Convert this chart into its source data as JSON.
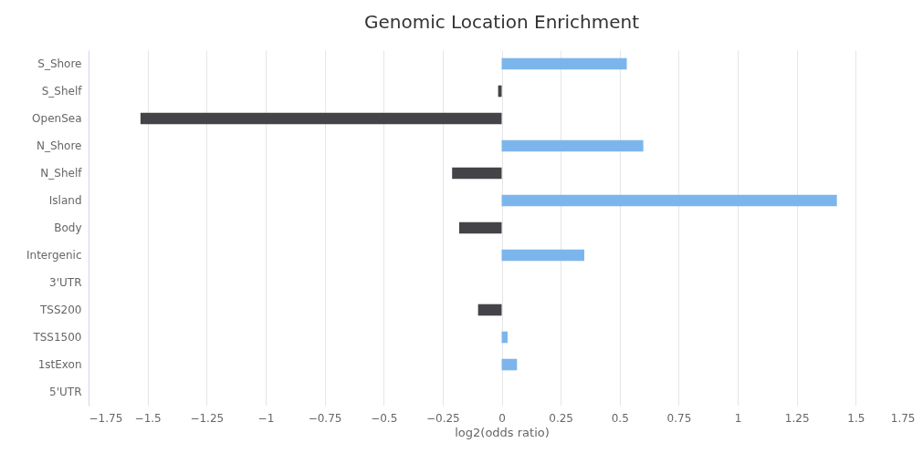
{
  "chart_data": {
    "type": "bar",
    "orientation": "horizontal",
    "title": "Genomic Location Enrichment",
    "xlabel": "log2(odds ratio)",
    "categories": [
      "S_Shore",
      "S_Shelf",
      "OpenSea",
      "N_Shore",
      "N_Shelf",
      "Island",
      "Body",
      "Intergenic",
      "3'UTR",
      "TSS200",
      "TSS1500",
      "1stExon",
      "5'UTR"
    ],
    "values": [
      0.53,
      -0.015,
      -1.53,
      0.6,
      -0.21,
      1.42,
      -0.18,
      0.35,
      null,
      -0.1,
      0.025,
      0.065,
      null
    ],
    "colors": [
      "#7cb5ec",
      "#434348",
      "#434348",
      "#7cb5ec",
      "#434348",
      "#7cb5ec",
      "#434348",
      "#7cb5ec",
      "#434348",
      "#434348",
      "#7cb5ec",
      "#7cb5ec",
      "#7cb5ec"
    ],
    "xlim": [
      -1.75,
      1.75
    ],
    "xticks": [
      {
        "value": -1.75,
        "label": "−1.75"
      },
      {
        "value": -1.5,
        "label": "−1.5"
      },
      {
        "value": -1.25,
        "label": "−1.25"
      },
      {
        "value": -1,
        "label": "−1"
      },
      {
        "value": -0.75,
        "label": "−0.75"
      },
      {
        "value": -0.5,
        "label": "−0.5"
      },
      {
        "value": -0.25,
        "label": "−0.25"
      },
      0,
      0.25,
      0.5,
      0.75,
      1,
      1.25,
      1.5,
      1.75
    ],
    "grid": "x"
  }
}
